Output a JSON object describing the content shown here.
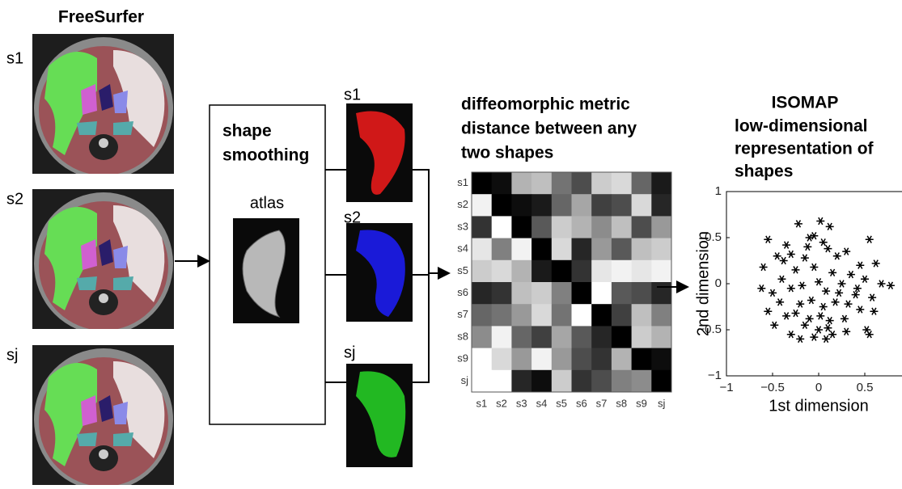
{
  "header": {
    "title": "FreeSurfer"
  },
  "subjects": [
    "s1",
    "s2",
    "sj"
  ],
  "smoothing": {
    "title_lines": [
      "shape",
      "smoothing"
    ],
    "atlas": "atlas"
  },
  "shapes": [
    "s1",
    "s2",
    "sj"
  ],
  "metric": {
    "title_lines": [
      "diffeomorphic metric",
      "distance between any",
      "two shapes"
    ],
    "rows": [
      "s1",
      "s2",
      "s3",
      "s4",
      "s5",
      "s6",
      "s7",
      "s8",
      "s9",
      "sj"
    ],
    "cols": [
      "s1",
      "s2",
      "s3",
      "s4",
      "s5",
      "s6",
      "s7",
      "s8",
      "s9",
      "sj"
    ],
    "intensity": [
      [
        0.0,
        0.05,
        0.7,
        0.75,
        0.45,
        0.3,
        0.8,
        0.85,
        0.4,
        0.1
      ],
      [
        0.95,
        0.0,
        0.05,
        0.1,
        0.4,
        0.65,
        0.25,
        0.3,
        0.85,
        0.15
      ],
      [
        0.2,
        1.0,
        0.0,
        0.35,
        0.8,
        0.7,
        0.55,
        0.75,
        0.3,
        0.6
      ],
      [
        0.9,
        0.5,
        0.95,
        0.0,
        0.85,
        0.15,
        0.6,
        0.35,
        0.75,
        0.8
      ],
      [
        0.8,
        0.85,
        0.7,
        0.1,
        0.0,
        0.2,
        0.9,
        0.95,
        0.9,
        0.95
      ],
      [
        0.15,
        0.2,
        0.75,
        0.8,
        0.5,
        0.0,
        1.0,
        0.35,
        0.3,
        0.15
      ],
      [
        0.4,
        0.45,
        0.6,
        0.85,
        0.45,
        1.0,
        0.0,
        0.25,
        0.75,
        0.5
      ],
      [
        0.55,
        0.95,
        0.4,
        0.25,
        0.65,
        0.35,
        0.15,
        0.0,
        0.8,
        0.7
      ],
      [
        1.0,
        0.85,
        0.6,
        0.95,
        0.6,
        0.3,
        0.2,
        0.7,
        0.0,
        0.05
      ],
      [
        1.0,
        1.0,
        0.15,
        0.05,
        0.8,
        0.2,
        0.3,
        0.5,
        0.55,
        0.0
      ]
    ]
  },
  "isomap": {
    "title_lines": [
      "ISOMAP",
      "low-dimensional",
      "representation of",
      "shapes"
    ],
    "xlabel": "1st dimension",
    "ylabel": "2nd dimension",
    "xlim": [
      -1,
      1
    ],
    "ylim": [
      -1,
      1
    ],
    "xticks": [
      {
        "value": -1,
        "label": "−1"
      },
      {
        "value": -0.5,
        "label": "−0.5"
      },
      0,
      0.5
    ],
    "yticks": [
      1,
      0.5,
      {
        "value": 0,
        "label": "0"
      },
      {
        "value": -0.5,
        "label": "−0.5"
      },
      {
        "value": -1,
        "label": "−1"
      }
    ],
    "x": [
      -0.22,
      0.02,
      0.12,
      -0.1,
      -0.05,
      0.05,
      -0.35,
      -0.12,
      0.1,
      0.55,
      -0.55,
      -0.3,
      -0.15,
      0.2,
      0.3,
      -0.45,
      -0.6,
      0.45,
      0.62,
      -0.25,
      -0.05,
      0.15,
      0.35,
      -0.4,
      0.0,
      0.25,
      0.5,
      0.68,
      0.78,
      -0.62,
      -0.5,
      -0.3,
      -0.18,
      0.08,
      0.22,
      0.4,
      0.58,
      -0.42,
      -0.2,
      -0.08,
      0.05,
      0.18,
      0.32,
      0.45,
      0.6,
      -0.55,
      -0.35,
      -0.25,
      -0.1,
      0.02,
      0.12,
      0.28,
      -0.48,
      -0.15,
      0.0,
      0.1,
      0.3,
      0.52,
      -0.3,
      -0.05,
      0.15,
      0.55,
      -0.2,
      0.08,
      -0.38,
      0.42
    ],
    "y": [
      0.65,
      0.68,
      0.62,
      0.5,
      0.52,
      0.45,
      0.42,
      0.4,
      0.38,
      0.48,
      0.48,
      0.32,
      0.28,
      0.3,
      0.35,
      0.3,
      0.18,
      0.2,
      0.22,
      0.15,
      0.18,
      0.12,
      0.1,
      0.05,
      0.02,
      0.0,
      0.05,
      0.0,
      -0.02,
      -0.05,
      -0.1,
      -0.05,
      -0.02,
      -0.08,
      -0.1,
      -0.12,
      -0.15,
      -0.2,
      -0.22,
      -0.18,
      -0.25,
      -0.2,
      -0.22,
      -0.28,
      -0.3,
      -0.3,
      -0.35,
      -0.32,
      -0.38,
      -0.35,
      -0.4,
      -0.38,
      -0.45,
      -0.45,
      -0.5,
      -0.48,
      -0.52,
      -0.5,
      -0.55,
      -0.58,
      -0.55,
      -0.55,
      -0.6,
      -0.6,
      0.25,
      -0.05
    ]
  }
}
